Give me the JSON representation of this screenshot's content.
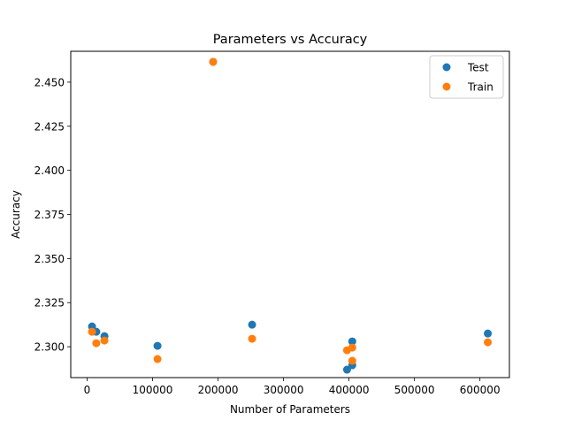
{
  "chart_data": {
    "type": "scatter",
    "title": "Parameters vs Accuracy",
    "xlabel": "Number of Parameters",
    "ylabel": "Accuracy",
    "xlim": [
      -25000,
      645000
    ],
    "ylim": [
      2.2825,
      2.4675
    ],
    "x_ticks": [
      0,
      100000,
      200000,
      300000,
      400000,
      500000,
      600000
    ],
    "x_tick_labels": [
      "0",
      "100000",
      "200000",
      "300000",
      "400000",
      "500000",
      "600000"
    ],
    "y_ticks": [
      2.3,
      2.325,
      2.35,
      2.375,
      2.4,
      2.425,
      2.45
    ],
    "y_tick_labels": [
      "2.300",
      "2.325",
      "2.350",
      "2.375",
      "2.400",
      "2.425",
      "2.450"
    ],
    "grid": false,
    "legend_position": "top-right",
    "series": [
      {
        "name": "Test",
        "color": "#1f77b4",
        "points": [
          {
            "x": 7500,
            "y": 2.3115
          },
          {
            "x": 14000,
            "y": 2.3085
          },
          {
            "x": 26500,
            "y": 2.306
          },
          {
            "x": 107500,
            "y": 2.3005
          },
          {
            "x": 192500,
            "y": 2.4615
          },
          {
            "x": 252000,
            "y": 2.3125
          },
          {
            "x": 397000,
            "y": 2.287
          },
          {
            "x": 405000,
            "y": 2.303
          },
          {
            "x": 405000,
            "y": 2.2895
          },
          {
            "x": 612000,
            "y": 2.3075
          }
        ]
      },
      {
        "name": "Train",
        "color": "#ff7f0e",
        "points": [
          {
            "x": 7500,
            "y": 2.3085
          },
          {
            "x": 14000,
            "y": 2.302
          },
          {
            "x": 26500,
            "y": 2.3035
          },
          {
            "x": 107500,
            "y": 2.293
          },
          {
            "x": 192500,
            "y": 2.4615
          },
          {
            "x": 252000,
            "y": 2.3045
          },
          {
            "x": 397000,
            "y": 2.298
          },
          {
            "x": 405000,
            "y": 2.2995
          },
          {
            "x": 405000,
            "y": 2.292
          },
          {
            "x": 612000,
            "y": 2.3025
          }
        ]
      }
    ]
  }
}
